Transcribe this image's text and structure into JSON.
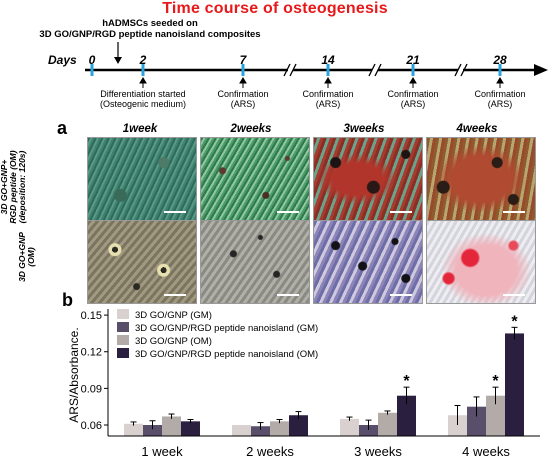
{
  "title": "Time course of osteogenesis",
  "timeline": {
    "seed_label": "hADMSCs seeded on\n3D GO/GNP/RGD peptide nanoisland composites",
    "days_label": "Days",
    "days": [
      "0",
      "2",
      "7",
      "14",
      "21",
      "28"
    ],
    "annotations": [
      {
        "day": "2",
        "text": "Differentiation started\n(Osteogenic medium)"
      },
      {
        "day": "7",
        "text": "Confirmation\n(ARS)"
      },
      {
        "day": "14",
        "text": "Confirmation\n(ARS)"
      },
      {
        "day": "21",
        "text": "Confirmation\n(ARS)"
      },
      {
        "day": "28",
        "text": "Confirmation\n(ARS)"
      }
    ],
    "colors": {
      "axis": "#000000",
      "ticks": "#29a3dd"
    }
  },
  "panel_a": {
    "label": "a",
    "columns": [
      "1week",
      "2weeks",
      "3weeks",
      "4weeks"
    ],
    "rows": [
      "3D GO+GNP+\nRGD peptide (OM)\n(deposition: 120s)",
      "3D GO+GNP\n(OM)"
    ]
  },
  "panel_b": {
    "label": "b",
    "legend": [
      "3D GO/GNP (GM)",
      "3D GO/GNP/RGD peptide nanoisland (GM)",
      "3D GO/GNP (OM)",
      "3D GO/GNP/RGD peptide nanoisland (OM)"
    ]
  },
  "chart_data": {
    "type": "bar",
    "title": "",
    "xlabel": "",
    "ylabel": "ARS/Absorbance.",
    "categories": [
      "1 week",
      "2 weeks",
      "3 weeks",
      "4 weeks"
    ],
    "ylim": [
      0.051,
      0.155
    ],
    "yticks": [
      0.06,
      0.09,
      0.12,
      0.15
    ],
    "ytick_labels": [
      "0.06",
      "0.09",
      "0.12",
      "0.15"
    ],
    "series": [
      {
        "name": "3D GO/GNP (GM)",
        "color": "#d8d1cf",
        "values": [
          0.061,
          0.06,
          0.065,
          0.068
        ],
        "errors": [
          0.0015,
          0.0,
          0.0015,
          0.008
        ]
      },
      {
        "name": "3D GO/GNP/RGD peptide nanoisland (GM)",
        "color": "#5a4f6b",
        "values": [
          0.06,
          0.059,
          0.06,
          0.075
        ],
        "errors": [
          0.0035,
          0.003,
          0.004,
          0.008
        ]
      },
      {
        "name": "3D GO/GNP (OM)",
        "color": "#b3aba7",
        "values": [
          0.067,
          0.063,
          0.07,
          0.084
        ],
        "errors": [
          0.002,
          0.0015,
          0.0015,
          0.007
        ]
      },
      {
        "name": "3D GO/GNP/RGD peptide nanoisland (OM)",
        "color": "#2b1f3f",
        "values": [
          0.063,
          0.068,
          0.084,
          0.135
        ],
        "errors": [
          0.0015,
          0.003,
          0.007,
          0.005
        ]
      }
    ],
    "significance": [
      {
        "category": "3 weeks",
        "series": 3,
        "text": "*"
      },
      {
        "category": "4 weeks",
        "series": 2,
        "text": "*"
      },
      {
        "category": "4 weeks",
        "series": 3,
        "text": "*"
      }
    ],
    "grid": false,
    "legend_position": "top-left"
  }
}
